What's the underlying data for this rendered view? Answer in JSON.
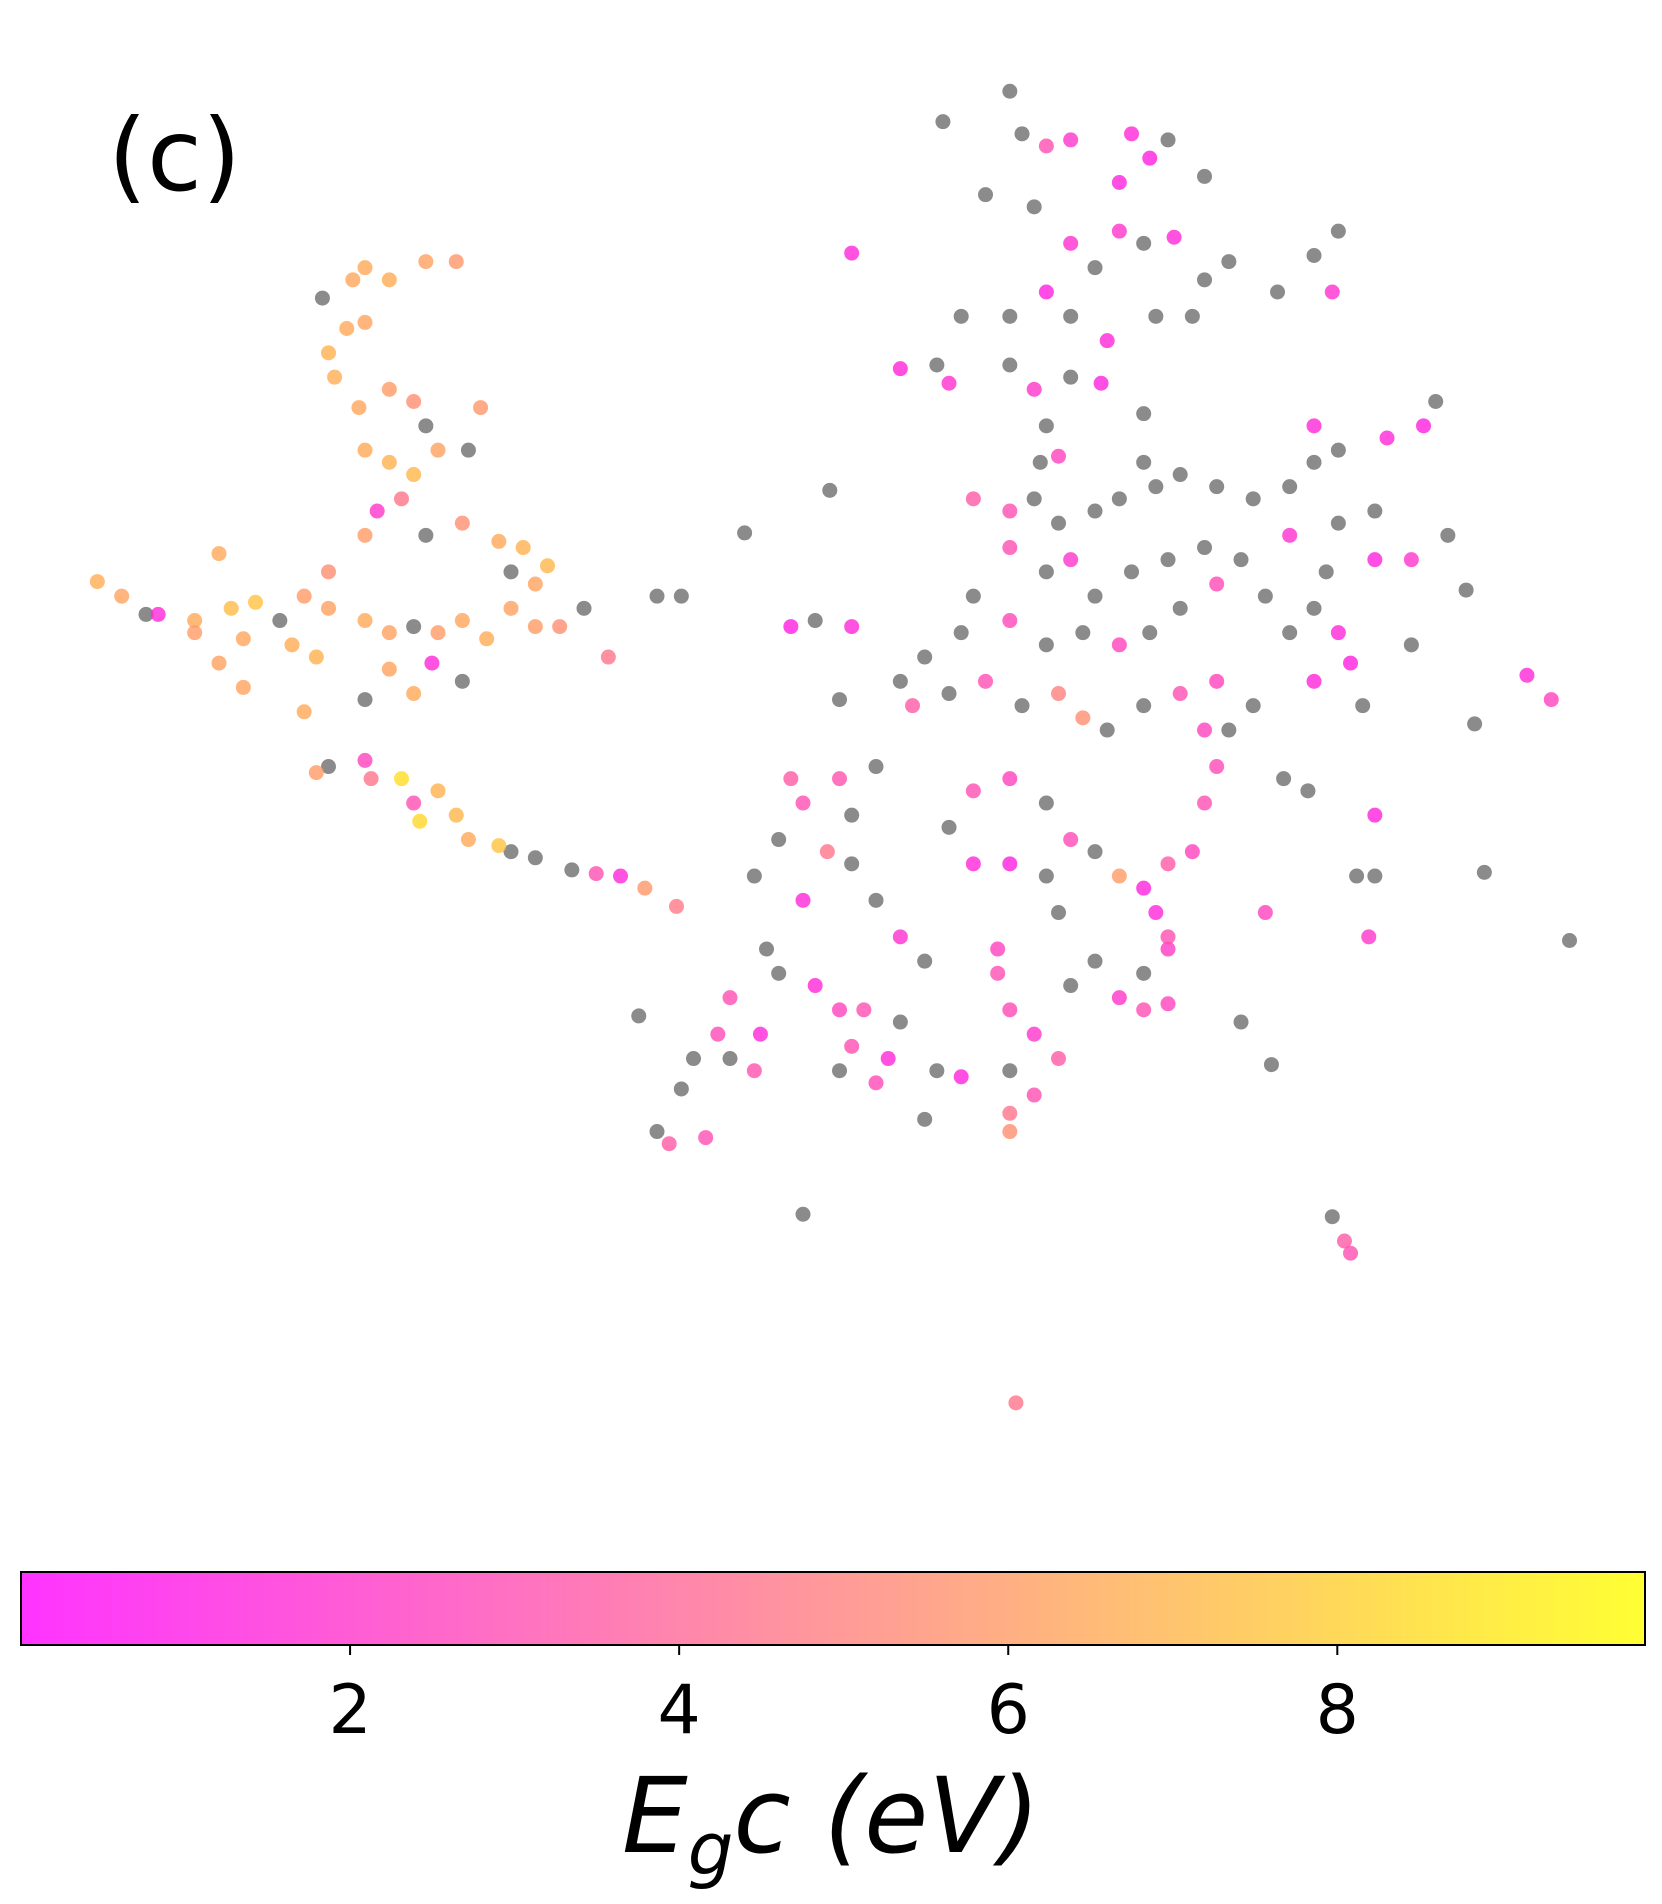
{
  "chart_data": {
    "type": "scatter",
    "panel_label": "(c)",
    "xlim": [
      0,
      1366
    ],
    "ylim": [
      1250,
      0
    ],
    "cmap": "spring",
    "alpha": 0.8,
    "nan_color": "#6e6e6e",
    "clim": [
      0,
      9.87
    ],
    "cticks": [
      2,
      4,
      6,
      8
    ],
    "colorbar_label": {
      "main": "E",
      "sub": "g",
      "rest": "c (eV)"
    },
    "x": [
      300,
      320,
      290,
      350,
      375,
      265,
      270,
      285,
      300,
      275,
      295,
      320,
      340,
      350,
      300,
      320,
      340,
      360,
      385,
      395,
      330,
      310,
      300,
      350,
      380,
      410,
      430,
      450,
      440,
      420,
      180,
      80,
      100,
      130,
      160,
      190,
      210,
      230,
      250,
      270,
      240,
      260,
      200,
      180,
      160,
      300,
      320,
      340,
      360,
      380,
      400,
      420,
      440,
      460,
      320,
      300,
      340,
      355,
      380,
      250,
      200,
      270,
      480,
      500,
      540,
      560,
      270,
      300,
      330,
      340,
      360,
      375,
      345,
      385,
      410,
      420,
      440,
      470,
      490,
      510,
      530,
      556,
      120,
      260,
      305,
      830,
      775,
      840,
      860,
      880,
      930,
      945,
      960,
      990,
      920,
      810,
      850,
      880,
      900,
      920,
      940,
      965,
      990,
      1010,
      860,
      830,
      880,
      910,
      950,
      980,
      790,
      770,
      780,
      830,
      850,
      880,
      905,
      860,
      700,
      740,
      1080,
      1100,
      1050,
      1095,
      940,
      870,
      855,
      940,
      800,
      830,
      850,
      870,
      900,
      920,
      950,
      970,
      1000,
      1030,
      1060,
      1080,
      1100,
      1140,
      1170,
      1180,
      1080,
      1100,
      1130,
      1060,
      1090,
      1130,
      1160,
      1190,
      1205,
      1080,
      1100,
      1110,
      1080,
      1120,
      1060,
      830,
      860,
      880,
      900,
      930,
      960,
      990,
      1020,
      1040,
      1000,
      970,
      945,
      920,
      890,
      860,
      830,
      800,
      790,
      760,
      740,
      750,
      780,
      810,
      840,
      870,
      890,
      910,
      940,
      970,
      1000,
      1030,
      1010,
      1255,
      1275,
      1212,
      1160,
      650,
      670,
      700,
      612,
      682,
      690,
      720,
      650,
      660,
      690,
      700,
      680,
      640,
      620,
      660,
      700,
      720,
      740,
      760,
      780,
      800,
      830,
      860,
      880,
      900,
      920,
      940,
      960,
      980,
      990,
      1000,
      990,
      950,
      960,
      940,
      920,
      940,
      960,
      960,
      800,
      830,
      860,
      870,
      820,
      820,
      830,
      850,
      830,
      870,
      850,
      830,
      830,
      790,
      770,
      760,
      730,
      740,
      710,
      690,
      700,
      720,
      690,
      670,
      640,
      600,
      590,
      620,
      570,
      560,
      540,
      550,
      580,
      600,
      625,
      630,
      525,
      1040,
      1045,
      1130,
      1130,
      1115,
      1125,
      1220,
      1290,
      1055,
      1075,
      1095,
      1105,
      1110,
      660,
      835,
      1020,
      880,
      900
    ],
    "y": [
      220,
      230,
      230,
      215,
      215,
      245,
      290,
      270,
      265,
      310,
      335,
      320,
      330,
      350,
      370,
      380,
      390,
      370,
      370,
      335,
      410,
      420,
      440,
      440,
      430,
      445,
      450,
      465,
      480,
      470,
      455,
      478,
      490,
      505,
      510,
      500,
      495,
      510,
      490,
      470,
      530,
      540,
      525,
      545,
      520,
      510,
      520,
      515,
      520,
      510,
      525,
      500,
      515,
      515,
      550,
      575,
      570,
      545,
      560,
      585,
      565,
      500,
      500,
      540,
      490,
      490,
      630,
      625,
      640,
      660,
      650,
      670,
      675,
      690,
      695,
      700,
      705,
      715,
      718,
      720,
      730,
      745,
      505,
      635,
      640,
      75,
      100,
      110,
      120,
      115,
      110,
      130,
      115,
      145,
      150,
      160,
      170,
      200,
      220,
      190,
      200,
      195,
      230,
      215,
      240,
      260,
      260,
      280,
      260,
      260,
      260,
      300,
      315,
      300,
      320,
      310,
      315,
      350,
      208,
      303,
      210,
      190,
      240,
      240,
      340,
      375,
      380,
      380,
      410,
      420,
      410,
      430,
      420,
      410,
      400,
      390,
      400,
      410,
      400,
      380,
      370,
      360,
      350,
      330,
      350,
      430,
      420,
      440,
      470,
      460,
      460,
      440,
      485,
      500,
      520,
      545,
      560,
      580,
      520,
      450,
      470,
      460,
      490,
      470,
      460,
      450,
      460,
      490,
      480,
      500,
      520,
      530,
      520,
      530,
      510,
      490,
      520,
      540,
      560,
      580,
      570,
      560,
      580,
      570,
      590,
      600,
      580,
      570,
      560,
      580,
      600,
      555,
      575,
      595,
      530,
      515,
      510,
      515,
      438,
      403,
      575,
      630,
      640,
      660,
      640,
      670,
      700,
      690,
      720,
      740,
      710,
      740,
      770,
      790,
      680,
      650,
      640,
      660,
      690,
      700,
      720,
      730,
      710,
      700,
      660,
      630,
      600,
      750,
      780,
      800,
      820,
      830,
      825,
      770,
      710,
      710,
      720,
      750,
      780,
      800,
      830,
      850,
      880,
      870,
      900,
      915,
      930,
      885,
      880,
      920,
      870,
      840,
      830,
      830,
      860,
      890,
      880,
      810,
      800,
      820,
      850,
      880,
      870,
      895,
      930,
      940,
      935,
      870,
      850,
      780,
      835,
      750,
      875,
      670,
      720,
      720,
      770,
      717,
      773,
      640,
      650,
      1000,
      1020,
      1030,
      998,
      1153,
      840,
      810,
      790
    ],
    "c": [
      6.5,
      6.6,
      6.4,
      6.2,
      5.8,
      null,
      6.8,
      6.5,
      6.3,
      6.7,
      6.4,
      6,
      5.5,
      null,
      6.5,
      6.8,
      7,
      6.2,
      null,
      5.8,
      4.5,
      2,
      6,
      null,
      5.5,
      6.5,
      6.8,
      7,
      6.3,
      null,
      6.5,
      6.7,
      6.3,
      1.5,
      6.5,
      7.2,
      7.5,
      null,
      6,
      5.5,
      6.6,
      6.8,
      6.4,
      6.2,
      6,
      6.5,
      6.2,
      null,
      6,
      6.4,
      6.6,
      6.2,
      6,
      5.5,
      6.3,
      null,
      6.5,
      1.5,
      null,
      6.5,
      6.3,
      6.2,
      null,
      4.5,
      null,
      null,
      null,
      2.5,
      8.5,
      3,
      6.8,
      7,
      8.3,
      6.5,
      7.5,
      null,
      null,
      null,
      3,
      1.5,
      5.8,
      4.7,
      null,
      6,
      4.5,
      null,
      null,
      null,
      3,
      2,
      1.5,
      1.2,
      null,
      null,
      1.3,
      null,
      null,
      1.8,
      null,
      2,
      null,
      1.5,
      null,
      null,
      1.2,
      null,
      null,
      1.5,
      null,
      null,
      null,
      null,
      1.8,
      null,
      2,
      null,
      1.3,
      null,
      1.5,
      1.4,
      null,
      null,
      null,
      1.8,
      null,
      2.5,
      null,
      null,
      3.5,
      3,
      null,
      null,
      null,
      null,
      null,
      null,
      null,
      null,
      null,
      null,
      null,
      1.5,
      1.2,
      null,
      1.5,
      null,
      null,
      1.8,
      null,
      1.3,
      2,
      null,
      null,
      null,
      1.5,
      1.2,
      1.4,
      null,
      null,
      3,
      null,
      2,
      null,
      null,
      null,
      null,
      null,
      null,
      2.8,
      null,
      null,
      2.5,
      null,
      null,
      2.7,
      null,
      null,
      null,
      null,
      3.5,
      null,
      3,
      null,
      5,
      5.5,
      null,
      null,
      3,
      2.5,
      null,
      null,
      1.5,
      2.5,
      null,
      null,
      1.2,
      null,
      1.5,
      null,
      null,
      null,
      null,
      3.5,
      3,
      3.2,
      null,
      4.5,
      null,
      null,
      1.5,
      null,
      null,
      1.8,
      null,
      null,
      3,
      2.5,
      null,
      2.8,
      null,
      6,
      1.3,
      3.5,
      2.5,
      3,
      2.8,
      2.5,
      1.5,
      2.2,
      null,
      2,
      3,
      2.5,
      3,
      1.5,
      1.2,
      null,
      null,
      2.5,
      3,
      2.8,
      2,
      null,
      3.5,
      3,
      4.5,
      5.5,
      1.3,
      null,
      null,
      1.5,
      null,
      3,
      2.5,
      3,
      2.8,
      null,
      1.5,
      null,
      3,
      2.8,
      3.2,
      null,
      null,
      null,
      3.5,
      3,
      null,
      1.5,
      null,
      null,
      2.5,
      null,
      1.3,
      null,
      null,
      2,
      null,
      null,
      null,
      null,
      null,
      3.5,
      3,
      null,
      4.5,
      null,
      null,
      null
    ]
  }
}
